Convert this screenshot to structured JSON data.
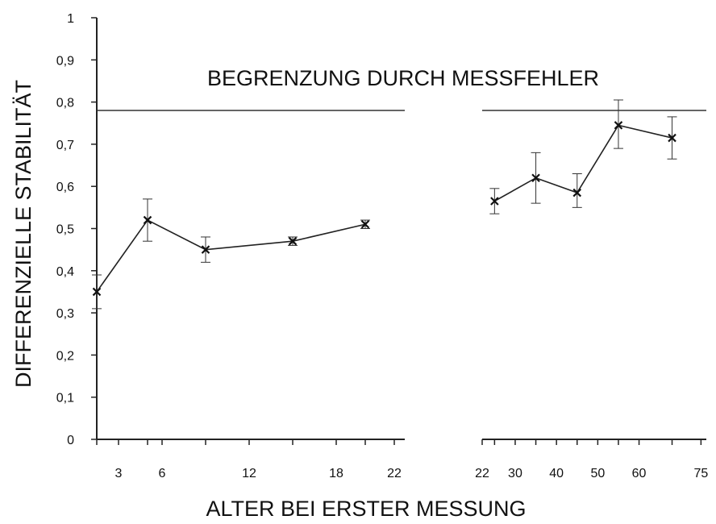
{
  "chart_data": {
    "type": "line",
    "ylabel": "DIFFERENZIELLE STABILITÄT",
    "xlabel": "ALTER BEI ERSTER MESSUNG",
    "annotation": "BEGRENZUNG DURCH MESSFEHLER",
    "ylim": [
      0,
      1
    ],
    "y_ticks": [
      "0",
      "0,1",
      "0,2",
      "0,3",
      "0,4",
      "0,5",
      "0,6",
      "0,7",
      "0,8",
      "0,9",
      "1"
    ],
    "reference_line": 0.78,
    "grid": false,
    "panels": [
      {
        "x_ticks": [
          "3",
          "6",
          "12",
          "18",
          "22"
        ],
        "points": [
          {
            "age": 1.5,
            "y": 0.35,
            "ci": [
              0.31,
              0.39
            ]
          },
          {
            "age": 5,
            "y": 0.52,
            "ci": [
              0.47,
              0.57
            ]
          },
          {
            "age": 9,
            "y": 0.45,
            "ci": [
              0.42,
              0.48
            ]
          },
          {
            "age": 15,
            "y": 0.47,
            "ci": [
              0.46,
              0.48
            ]
          },
          {
            "age": 20,
            "y": 0.51,
            "ci": [
              0.5,
              0.52
            ]
          }
        ]
      },
      {
        "x_ticks": [
          "22",
          "30",
          "40",
          "50",
          "60",
          "75"
        ],
        "points": [
          {
            "age": 25,
            "y": 0.565,
            "ci": [
              0.535,
              0.595
            ]
          },
          {
            "age": 35,
            "y": 0.62,
            "ci": [
              0.56,
              0.68
            ]
          },
          {
            "age": 45,
            "y": 0.585,
            "ci": [
              0.55,
              0.63
            ]
          },
          {
            "age": 55,
            "y": 0.745,
            "ci": [
              0.69,
              0.805
            ]
          },
          {
            "age": 68,
            "y": 0.715,
            "ci": [
              0.665,
              0.765
            ]
          }
        ]
      }
    ]
  }
}
